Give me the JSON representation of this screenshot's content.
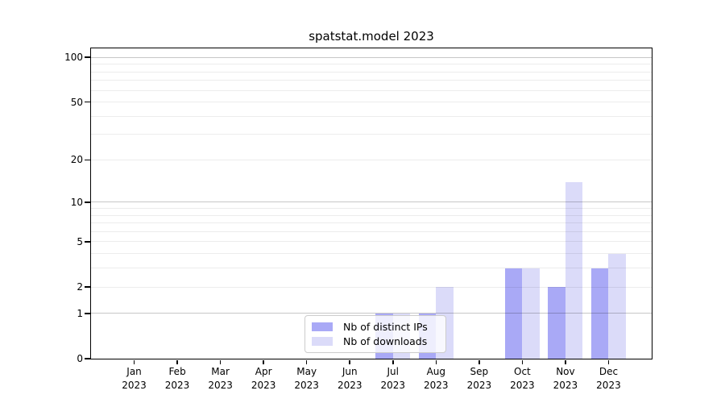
{
  "chart_data": {
    "type": "bar",
    "title": "spatstat.model 2023",
    "x_categories": [
      {
        "month": "Jan",
        "year": "2023"
      },
      {
        "month": "Feb",
        "year": "2023"
      },
      {
        "month": "Mar",
        "year": "2023"
      },
      {
        "month": "Apr",
        "year": "2023"
      },
      {
        "month": "May",
        "year": "2023"
      },
      {
        "month": "Jun",
        "year": "2023"
      },
      {
        "month": "Jul",
        "year": "2023"
      },
      {
        "month": "Aug",
        "year": "2023"
      },
      {
        "month": "Sep",
        "year": "2023"
      },
      {
        "month": "Oct",
        "year": "2023"
      },
      {
        "month": "Nov",
        "year": "2023"
      },
      {
        "month": "Dec",
        "year": "2023"
      }
    ],
    "series": [
      {
        "key": "distinct-ips",
        "name": "Nb of distinct IPs",
        "color": "#a9a9f6",
        "values": [
          0,
          0,
          0,
          0,
          0,
          0,
          1,
          1,
          0,
          3,
          2,
          3
        ]
      },
      {
        "key": "downloads",
        "name": "Nb of downloads",
        "color": "#dbdbf9",
        "values": [
          0,
          0,
          0,
          0,
          0,
          0,
          1,
          2,
          0,
          3,
          14,
          4
        ]
      }
    ],
    "y_axis": {
      "scale": "log1p",
      "ticks": [
        0,
        1,
        2,
        5,
        10,
        20,
        50,
        100
      ],
      "max": 115,
      "major_gridlines": [
        1,
        10,
        100
      ],
      "minor_gridlines": [
        2,
        3,
        4,
        5,
        6,
        7,
        8,
        9,
        20,
        30,
        40,
        50,
        60,
        70,
        80,
        90
      ],
      "grid": true
    },
    "legend": {
      "position": "lower-center"
    }
  }
}
